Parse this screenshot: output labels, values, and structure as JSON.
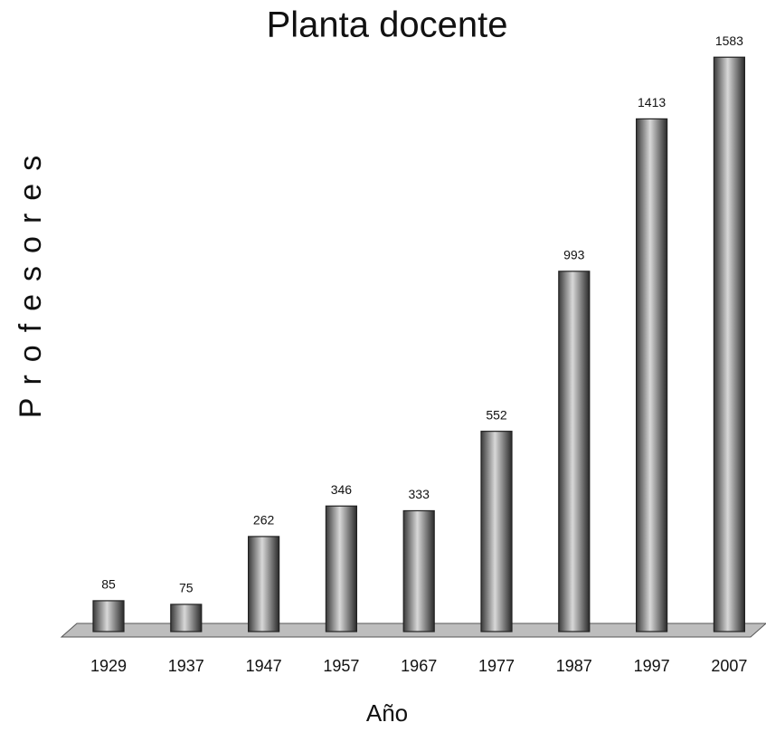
{
  "chart_data": {
    "type": "bar",
    "title": "Planta docente",
    "x_label": "Año",
    "y_label": "Profesores",
    "categories": [
      "1929",
      "1937",
      "1947",
      "1957",
      "1967",
      "1977",
      "1987",
      "1997",
      "2007"
    ],
    "values": [
      85,
      75,
      262,
      346,
      333,
      552,
      993,
      1413,
      1583
    ],
    "color": "#6e6e6e"
  }
}
